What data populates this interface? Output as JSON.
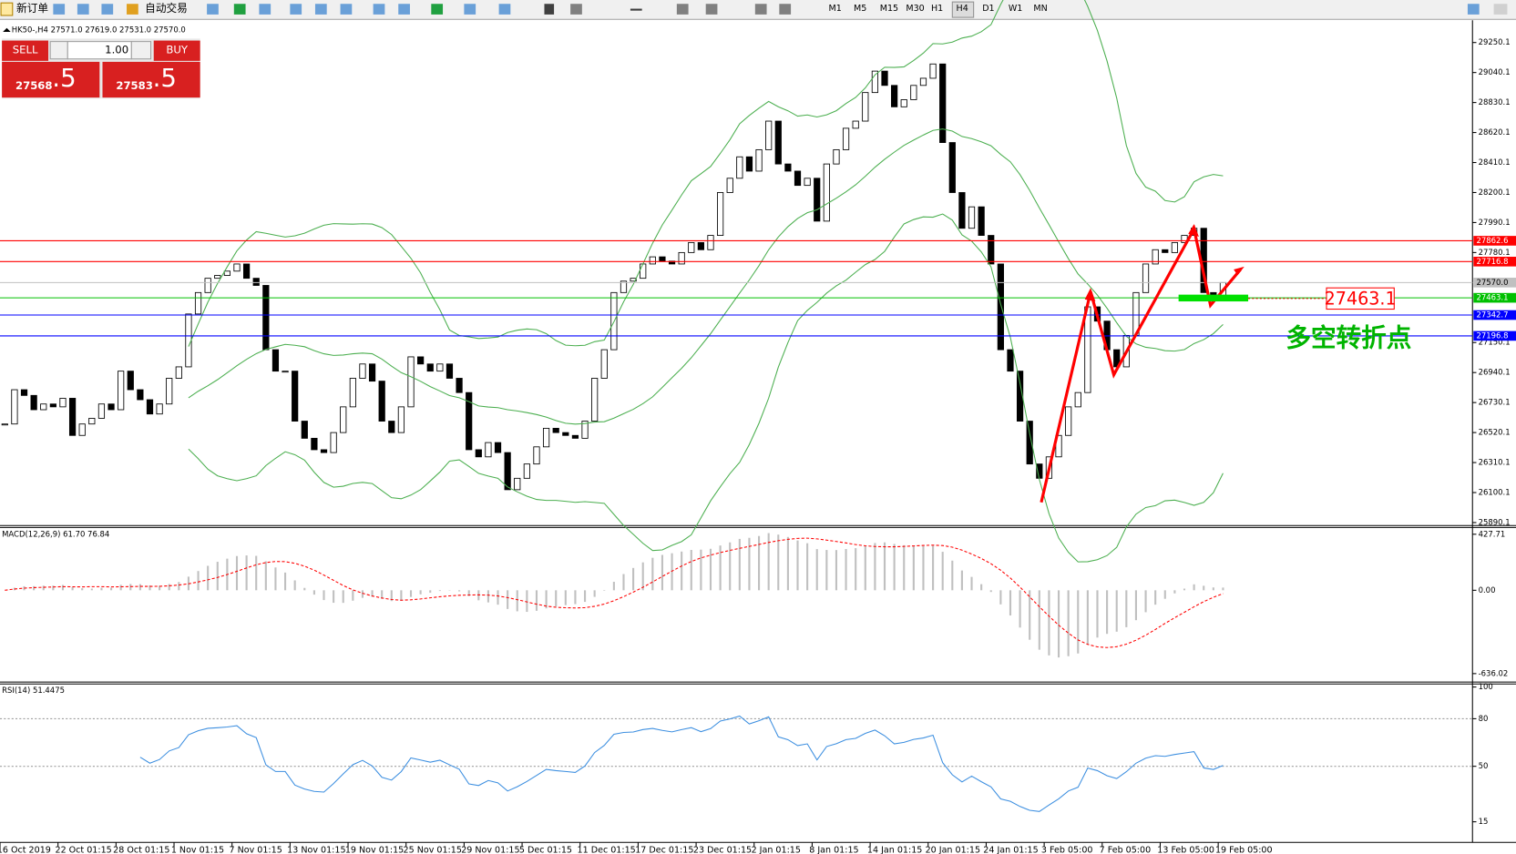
{
  "toolbar": {
    "new_order": "新订单",
    "auto_trading": "自动交易",
    "timeframes": [
      "M1",
      "M5",
      "M15",
      "M30",
      "H1",
      "H4",
      "D1",
      "W1",
      "MN"
    ]
  },
  "trade_panel": {
    "sell": "SELL",
    "lots": "1.00",
    "buy": "BUY",
    "bid_main": "27568",
    "bid_frac": ".5",
    "ask_main": "27583",
    "ask_frac": ".5"
  },
  "chart_data": [
    {
      "type": "candlestick",
      "title": "HK50-,H4  27571.0 27619.0 27531.0 27570.0",
      "up_color": "#ffffff",
      "down_color": "#000000",
      "band_color": "#4caf50",
      "values": [
        26580,
        26820,
        26780,
        26680,
        26720,
        26700,
        26760,
        26500,
        26580,
        26620,
        26720,
        26680,
        26950,
        26820,
        26750,
        26650,
        26720,
        26900,
        26980,
        27350,
        27500,
        27600,
        27620,
        27650,
        27700,
        27600,
        27550,
        27100,
        26950,
        26950,
        26600,
        26480,
        26400,
        26380,
        26520,
        26700,
        26900,
        27000,
        26880,
        26600,
        26520,
        26700,
        27050,
        27000,
        26950,
        27000,
        26900,
        26800,
        26400,
        26350,
        26450,
        26380,
        26120,
        26200,
        26300,
        26420,
        26550,
        26520,
        26500,
        26480,
        26600,
        26900,
        27100,
        27500,
        27580,
        27600,
        27700,
        27750,
        27720,
        27700,
        27780,
        27850,
        27800,
        27900,
        28200,
        28300,
        28450,
        28350,
        28500,
        28700,
        28400,
        28350,
        28250,
        28300,
        28000,
        28400,
        28500,
        28650,
        28700,
        28900,
        29050,
        28950,
        28800,
        28850,
        28950,
        29000,
        29100,
        28550,
        28200,
        27950,
        28100,
        27900,
        27700,
        27100,
        26950,
        26600,
        26300,
        26200,
        26350,
        26500,
        26700,
        26800,
        27400,
        27300,
        27100,
        26980,
        27200,
        27500,
        27700,
        27800,
        27780,
        27850,
        27900,
        27950,
        27500,
        27450,
        27570
      ],
      "ylim": [
        25876,
        29399
      ],
      "yticks": [
        29250.1,
        29040.1,
        28830.1,
        28620.1,
        28410.1,
        28200.1,
        27990.1,
        27780.1,
        27150.1,
        26940.1,
        26730.1,
        26520.1,
        26310.1,
        26100.1,
        25890.1
      ],
      "levels": [
        {
          "value": 27862.6,
          "color": "#ff0000"
        },
        {
          "value": 27716.8,
          "color": "#ff0000"
        },
        {
          "value": 27570,
          "label": "27570.0",
          "color": "#c0c0c0"
        },
        {
          "value": 27463.1,
          "color": "#00c000"
        },
        {
          "value": 27342.7,
          "color": "#0000ff"
        },
        {
          "value": 27196.8,
          "color": "#0000ff"
        }
      ],
      "xtick_labels": [
        "16 Oct 2019",
        "22 Oct 01:15",
        "28 Oct 01:15",
        "1 Nov 01:15",
        "7 Nov 01:15",
        "13 Nov 01:15",
        "19 Nov 01:15",
        "25 Nov 01:15",
        "29 Nov 01:15",
        "5 Dec 01:15",
        "11 Dec 01:15",
        "17 Dec 01:15",
        "23 Dec 01:15",
        "2 Jan 01:15",
        "8 Jan 01:15",
        "14 Jan 01:15",
        "20 Jan 01:15",
        "24 Jan 01:15",
        "3 Feb 05:00",
        "7 Feb 05:00",
        "13 Feb 05:00",
        "19 Feb 05:00"
      ]
    },
    {
      "type": "macd",
      "title": "MACD(12,26,9) 61.70 76.84",
      "ylim": [
        -693,
        472
      ],
      "yticks": [
        427.71,
        {
          "value": 0,
          "label": "0.00"
        },
        -636.02
      ],
      "color": "#c0c0c0",
      "signal_color": "#ff0000"
    },
    {
      "type": "rsi",
      "title": "RSI(14) 51.4475",
      "ylim": [
        2,
        101.3
      ],
      "yticks": [
        100,
        80,
        50,
        15
      ],
      "grid": [
        80,
        50
      ],
      "color": "#3d8fe0"
    }
  ],
  "annotations": {
    "price_box": "27463.1",
    "note": "多空转折点"
  }
}
